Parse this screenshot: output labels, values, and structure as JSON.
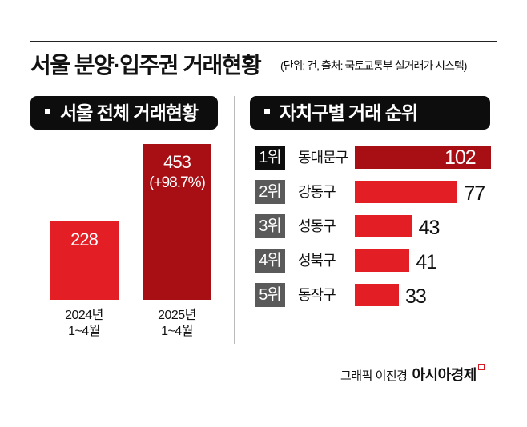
{
  "title": "서울 분양·입주권 거래현황",
  "subtitle": "(단위: 건, 출처: 국토교통부 실거래가 시스템)",
  "chart_data": [
    {
      "type": "bar",
      "title": "서울 전체 거래현황",
      "categories": [
        "2024년\n1~4월",
        "2025년\n1~4월"
      ],
      "category_lines": [
        [
          "2024년",
          "1~4월"
        ],
        [
          "2025년",
          "1~4월"
        ]
      ],
      "values": [
        228,
        453
      ],
      "labels": [
        "228",
        "453"
      ],
      "change_label": "(+98.7%)",
      "ylim": [
        0,
        460
      ],
      "colors": [
        "#e31e25",
        "#a80f14"
      ]
    },
    {
      "type": "bar",
      "orientation": "horizontal",
      "title": "자치구별 거래 순위",
      "ranks": [
        "1위",
        "2위",
        "3위",
        "4위",
        "5위"
      ],
      "categories": [
        "동대문구",
        "강동구",
        "성동구",
        "성북구",
        "동작구"
      ],
      "values": [
        102,
        77,
        43,
        41,
        33
      ],
      "xlim": [
        0,
        102
      ],
      "colors": {
        "top": "#a80f14",
        "other": "#e31e25",
        "rank_top": "#0d0d0d",
        "rank_other": "#5a5a5a"
      }
    }
  ],
  "footer": {
    "credit": "그래픽 이진경",
    "brand": "아시아경제"
  }
}
